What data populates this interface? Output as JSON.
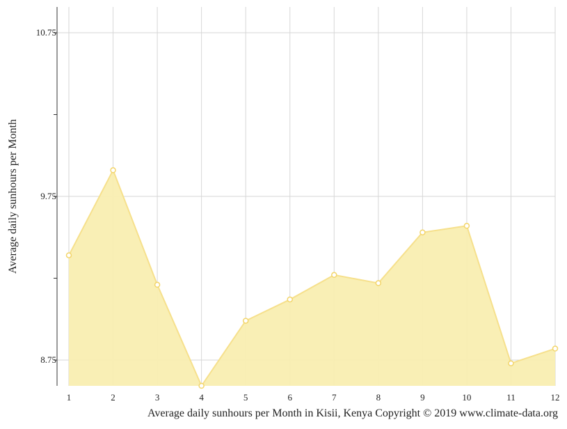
{
  "chart_data": {
    "type": "area",
    "title": "Average daily sunhours per Month in Kisii, Kenya Copyright © 2019 www.climate-data.org",
    "xlabel": "",
    "ylabel": "Average daily sunhours per Month",
    "categories": [
      "1",
      "2",
      "3",
      "4",
      "5",
      "6",
      "7",
      "8",
      "9",
      "10",
      "11",
      "12"
    ],
    "values": [
      9.39,
      9.91,
      9.21,
      8.59,
      8.99,
      9.12,
      9.27,
      9.22,
      9.53,
      9.57,
      8.73,
      8.82
    ],
    "yticks": [
      "10.75",
      "9.75",
      "8.75"
    ],
    "ylim": [
      8.59,
      10.91
    ],
    "grid": true,
    "colors": {
      "fill": "#f9eeb1",
      "line": "#f6e08c",
      "point": "#f3d56a"
    }
  }
}
